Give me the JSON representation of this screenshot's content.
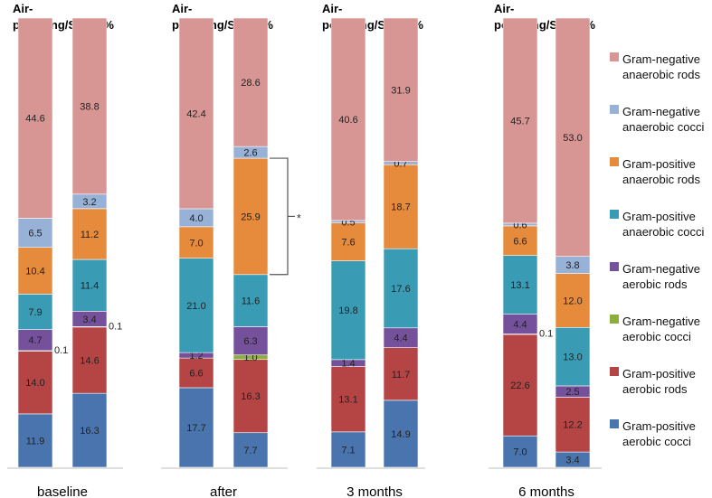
{
  "chart_data": {
    "type": "bar",
    "stacked": true,
    "normalized": true,
    "group_header": "Air-polishing/Sonic %",
    "categories": [
      "baseline",
      "after",
      "3 months",
      "6 months"
    ],
    "bar_order": [
      "Air-polishing",
      "Sonic"
    ],
    "series": [
      {
        "name": "Gram-positive aerobic cocci",
        "color": "#4a74ad",
        "values": [
          [
            11.9,
            16.3
          ],
          [
            17.7,
            7.7
          ],
          [
            7.1,
            14.9
          ],
          [
            7.0,
            3.4
          ]
        ]
      },
      {
        "name": "Gram-positive aerobic rods",
        "color": "#b54545",
        "values": [
          [
            14.0,
            14.6
          ],
          [
            6.6,
            16.3
          ],
          [
            13.1,
            11.7
          ],
          [
            22.6,
            12.2
          ]
        ]
      },
      {
        "name": "Gram-negative aerobic cocci",
        "color": "#8ead3f",
        "values": [
          [
            0.1,
            0.1
          ],
          [
            0.0,
            1.0
          ],
          [
            0.0,
            0.0
          ],
          [
            0.1,
            0.0
          ]
        ]
      },
      {
        "name": "Gram-negative aerobic rods",
        "color": "#74519a",
        "values": [
          [
            4.7,
            3.4
          ],
          [
            1.2,
            6.3
          ],
          [
            1.4,
            4.4
          ],
          [
            4.4,
            2.5
          ]
        ]
      },
      {
        "name": "Gram-positive anaerobic cocci",
        "color": "#3a9bb4",
        "values": [
          [
            7.9,
            11.4
          ],
          [
            21.0,
            11.6
          ],
          [
            19.8,
            17.6
          ],
          [
            13.1,
            13.0
          ]
        ]
      },
      {
        "name": "Gram-positive anaerobic rods",
        "color": "#e68a3c",
        "values": [
          [
            10.4,
            11.2
          ],
          [
            7.0,
            25.9
          ],
          [
            7.6,
            18.7
          ],
          [
            6.6,
            12.0
          ]
        ]
      },
      {
        "name": "Gram-negative anaerobic cocci",
        "color": "#98b1d6",
        "values": [
          [
            6.5,
            3.2
          ],
          [
            4.0,
            2.6
          ],
          [
            0.5,
            0.7
          ],
          [
            0.6,
            3.8
          ]
        ]
      },
      {
        "name": "Gram-negative anaerobic rods",
        "color": "#d79594",
        "values": [
          [
            44.6,
            38.8
          ],
          [
            42.4,
            28.6
          ],
          [
            40.6,
            31.9
          ],
          [
            45.7,
            53.0
          ]
        ]
      }
    ],
    "hidden_value_labels": [
      [
        2,
        1,
        0
      ],
      [
        2,
        2,
        0
      ],
      [
        2,
        2,
        1
      ],
      [
        2,
        3,
        1
      ]
    ],
    "outside_value_labels": [
      [
        2,
        0,
        0,
        "right"
      ],
      [
        2,
        0,
        1,
        "right"
      ],
      [
        2,
        3,
        0,
        "right"
      ]
    ],
    "significance": {
      "group": 1,
      "bar": 1,
      "series": "Gram-positive anaerobic rods",
      "marker": "*"
    },
    "legend": {
      "position": "right",
      "entries": [
        {
          "line1": "Gram-negative",
          "line2": "anaerobic rods",
          "color": "#d79594"
        },
        {
          "line1": "Gram-negative",
          "line2": "anaerobic cocci",
          "color": "#98b1d6"
        },
        {
          "line1": "Gram-positive",
          "line2": "anaerobic rods",
          "color": "#e68a3c"
        },
        {
          "line1": "Gram-positive",
          "line2": "anaerobic cocci",
          "color": "#3a9bb4"
        },
        {
          "line1": "Gram-negative",
          "line2": "aerobic rods",
          "color": "#74519a"
        },
        {
          "line1": "Gram-negative",
          "line2": "aerobic cocci",
          "color": "#8ead3f"
        },
        {
          "line1": "Gram-positive",
          "line2": "aerobic rods",
          "color": "#b54545"
        },
        {
          "line1": "Gram-positive",
          "line2": "aerobic cocci",
          "color": "#4a74ad"
        }
      ]
    },
    "grid": false
  }
}
